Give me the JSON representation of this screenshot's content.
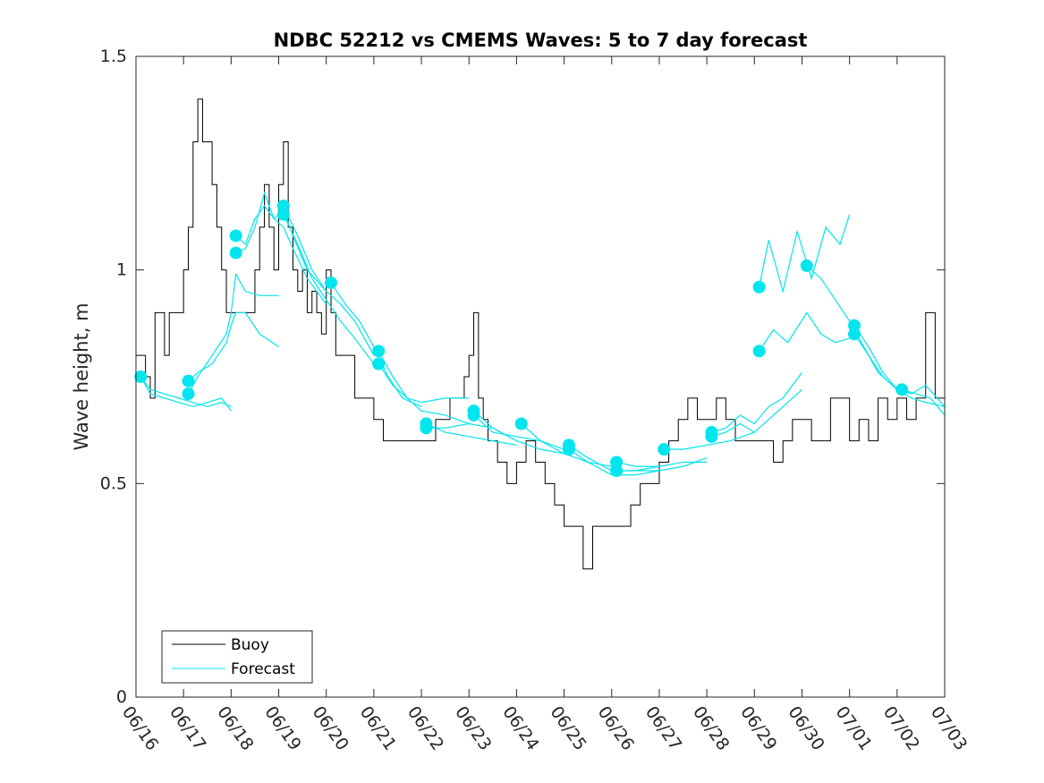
{
  "chart_data": {
    "type": "line",
    "title": "NDBC 52212 vs CMEMS Waves: 5 to 7 day forecast",
    "xlabel": "",
    "ylabel": "Wave height, m",
    "xlim": [
      "06/16",
      "07/03"
    ],
    "ylim": [
      0,
      1.5
    ],
    "x_tick_labels": [
      "06/16",
      "06/17",
      "06/18",
      "06/19",
      "06/20",
      "06/21",
      "06/22",
      "06/23",
      "06/24",
      "06/25",
      "06/26",
      "06/27",
      "06/28",
      "06/29",
      "06/30",
      "07/01",
      "07/02",
      "07/03"
    ],
    "y_ticks": [
      0,
      0.5,
      1,
      1.5
    ],
    "y_tick_labels": [
      "0",
      "0.5",
      "1",
      "1.5"
    ],
    "grid": false,
    "legend_position": "bottom-left",
    "colors": {
      "buoy": "#000000",
      "forecast": "#00e5ee"
    },
    "series": [
      {
        "name": "Buoy",
        "x_days": [
          0,
          0.1,
          0.2,
          0.3,
          0.4,
          0.5,
          0.6,
          0.7,
          0.8,
          0.9,
          1.0,
          1.1,
          1.2,
          1.3,
          1.4,
          1.5,
          1.6,
          1.7,
          1.8,
          1.9,
          2.0,
          2.1,
          2.3,
          2.5,
          2.6,
          2.7,
          2.8,
          2.9,
          3.0,
          3.1,
          3.2,
          3.3,
          3.4,
          3.5,
          3.6,
          3.7,
          3.8,
          3.9,
          4.0,
          4.1,
          4.2,
          4.3,
          4.4,
          4.6,
          4.8,
          5.0,
          5.2,
          5.4,
          5.6,
          5.8,
          6.0,
          6.3,
          6.6,
          6.9,
          7.0,
          7.1,
          7.2,
          7.3,
          7.4,
          7.6,
          7.8,
          8.0,
          8.2,
          8.4,
          8.6,
          8.8,
          9.0,
          9.2,
          9.4,
          9.6,
          9.8,
          10.0,
          10.2,
          10.4,
          10.6,
          10.8,
          11.0,
          11.2,
          11.4,
          11.6,
          11.8,
          12.0,
          12.2,
          12.4,
          12.6,
          12.8,
          13.0,
          13.2,
          13.4,
          13.6,
          13.8,
          14.0,
          14.2,
          14.4,
          14.6,
          14.8,
          15.0,
          15.2,
          15.4,
          15.6,
          15.8,
          16.0,
          16.2,
          16.4,
          16.6,
          16.8,
          17.0
        ],
        "values": [
          0.8,
          0.8,
          0.75,
          0.7,
          0.9,
          0.9,
          0.8,
          0.9,
          0.9,
          0.9,
          1.0,
          1.1,
          1.3,
          1.4,
          1.3,
          1.3,
          1.2,
          1.1,
          1.0,
          0.9,
          0.9,
          0.9,
          0.9,
          1.0,
          1.1,
          1.2,
          1.1,
          1.0,
          1.2,
          1.3,
          1.1,
          1.0,
          0.95,
          1.0,
          0.9,
          0.95,
          0.9,
          0.85,
          1.0,
          0.9,
          0.8,
          0.8,
          0.8,
          0.7,
          0.7,
          0.65,
          0.6,
          0.6,
          0.6,
          0.6,
          0.6,
          0.65,
          0.7,
          0.75,
          0.8,
          0.9,
          0.7,
          0.65,
          0.6,
          0.55,
          0.5,
          0.55,
          0.6,
          0.55,
          0.5,
          0.45,
          0.4,
          0.4,
          0.3,
          0.4,
          0.4,
          0.4,
          0.4,
          0.45,
          0.5,
          0.5,
          0.55,
          0.6,
          0.65,
          0.7,
          0.65,
          0.65,
          0.7,
          0.65,
          0.6,
          0.6,
          0.6,
          0.6,
          0.55,
          0.6,
          0.65,
          0.65,
          0.6,
          0.6,
          0.7,
          0.7,
          0.6,
          0.65,
          0.6,
          0.7,
          0.65,
          0.7,
          0.65,
          0.7,
          0.9,
          0.7,
          0.7
        ]
      },
      {
        "name": "Forecast",
        "runs": [
          {
            "x_days": [
              0.1,
              0.3,
              0.6,
              0.9,
              1.2,
              1.5,
              1.8,
              2.0
            ],
            "values": [
              0.75,
              0.72,
              0.71,
              0.7,
              0.69,
              0.68,
              0.69,
              0.68
            ]
          },
          {
            "x_days": [
              0.1,
              0.3,
              0.6,
              0.9,
              1.2,
              1.5,
              1.8,
              2.0
            ],
            "values": [
              0.75,
              0.71,
              0.7,
              0.69,
              0.68,
              0.69,
              0.7,
              0.67
            ]
          },
          {
            "x_days": [
              1.1,
              1.3,
              1.6,
              1.9,
              2.0,
              2.1,
              2.3,
              2.6,
              3.0
            ],
            "values": [
              0.71,
              0.75,
              0.8,
              0.85,
              0.9,
              0.99,
              0.95,
              0.94,
              0.94
            ]
          },
          {
            "x_days": [
              1.1,
              1.3,
              1.6,
              1.9,
              2.0,
              2.1,
              2.3,
              2.6,
              3.0
            ],
            "values": [
              0.74,
              0.76,
              0.78,
              0.83,
              0.87,
              0.9,
              0.9,
              0.85,
              0.82
            ]
          },
          {
            "x_days": [
              2.1,
              2.3,
              2.5,
              2.7,
              2.9,
              3.1,
              3.3,
              3.6,
              4.0
            ],
            "values": [
              1.04,
              1.05,
              1.1,
              1.18,
              1.12,
              1.1,
              1.05,
              0.98,
              0.92
            ]
          },
          {
            "x_days": [
              2.1,
              2.3,
              2.5,
              2.7,
              2.9,
              3.1,
              3.3,
              3.6,
              4.0
            ],
            "values": [
              1.08,
              1.06,
              1.12,
              1.15,
              1.12,
              1.14,
              1.08,
              1.0,
              0.95
            ]
          },
          {
            "x_days": [
              3.1,
              3.4,
              3.7,
              4.0,
              4.3,
              4.6,
              5.0
            ],
            "values": [
              1.15,
              1.08,
              1.0,
              0.95,
              0.92,
              0.88,
              0.8
            ]
          },
          {
            "x_days": [
              3.1,
              3.4,
              3.7,
              4.0,
              4.3,
              4.6,
              5.0
            ],
            "values": [
              1.13,
              1.06,
              0.98,
              0.93,
              0.88,
              0.84,
              0.78
            ]
          },
          {
            "x_days": [
              4.1,
              4.4,
              4.7,
              5.0,
              5.3,
              5.6,
              6.0
            ],
            "values": [
              0.97,
              0.92,
              0.88,
              0.82,
              0.75,
              0.7,
              0.68
            ]
          },
          {
            "x_days": [
              5.1,
              5.4,
              5.7,
              6.0,
              6.5,
              7.0
            ],
            "values": [
              0.81,
              0.75,
              0.7,
              0.67,
              0.66,
              0.64
            ]
          },
          {
            "x_days": [
              5.1,
              5.4,
              5.7,
              6.0,
              6.5,
              7.0
            ],
            "values": [
              0.78,
              0.73,
              0.7,
              0.69,
              0.7,
              0.7
            ]
          },
          {
            "x_days": [
              6.1,
              6.5,
              7.0,
              7.5,
              8.0
            ],
            "values": [
              0.64,
              0.62,
              0.61,
              0.6,
              0.59
            ]
          },
          {
            "x_days": [
              6.1,
              6.5,
              7.0,
              7.5,
              8.0
            ],
            "values": [
              0.63,
              0.63,
              0.64,
              0.63,
              0.6
            ]
          },
          {
            "x_days": [
              7.1,
              7.5,
              8.0,
              8.5,
              9.0
            ],
            "values": [
              0.67,
              0.63,
              0.6,
              0.58,
              0.57
            ]
          },
          {
            "x_days": [
              7.1,
              7.5,
              8.0,
              8.5,
              9.0
            ],
            "values": [
              0.66,
              0.62,
              0.61,
              0.6,
              0.58
            ]
          },
          {
            "x_days": [
              8.1,
              8.5,
              9.0,
              9.5,
              10.0
            ],
            "values": [
              0.64,
              0.6,
              0.57,
              0.55,
              0.54
            ]
          },
          {
            "x_days": [
              9.1,
              9.5,
              10.0,
              10.5,
              11.0
            ],
            "values": [
              0.59,
              0.56,
              0.53,
              0.53,
              0.54
            ]
          },
          {
            "x_days": [
              9.1,
              9.5,
              10.0,
              10.5,
              11.0
            ],
            "values": [
              0.58,
              0.55,
              0.52,
              0.52,
              0.53
            ]
          },
          {
            "x_days": [
              10.1,
              10.5,
              11.0,
              11.5,
              12.0
            ],
            "values": [
              0.55,
              0.54,
              0.54,
              0.55,
              0.55
            ]
          },
          {
            "x_days": [
              10.1,
              10.5,
              11.0,
              11.5,
              12.0
            ],
            "values": [
              0.53,
              0.53,
              0.53,
              0.54,
              0.56
            ]
          },
          {
            "x_days": [
              11.1,
              11.5,
              12.0,
              12.5,
              13.0
            ],
            "values": [
              0.58,
              0.58,
              0.59,
              0.6,
              0.62
            ]
          },
          {
            "x_days": [
              12.1,
              12.4,
              12.7,
              13.0,
              13.3,
              13.6,
              14.0
            ],
            "values": [
              0.62,
              0.63,
              0.66,
              0.64,
              0.68,
              0.7,
              0.76
            ]
          },
          {
            "x_days": [
              12.1,
              12.4,
              12.7,
              13.0,
              13.3,
              13.6,
              14.0
            ],
            "values": [
              0.61,
              0.62,
              0.64,
              0.62,
              0.65,
              0.68,
              0.72
            ]
          },
          {
            "x_days": [
              13.1,
              13.3,
              13.6,
              13.9,
              14.2,
              14.5,
              14.8,
              15.0
            ],
            "values": [
              0.96,
              1.07,
              0.95,
              1.09,
              0.98,
              1.1,
              1.06,
              1.13
            ]
          },
          {
            "x_days": [
              13.1,
              13.4,
              13.7,
              14.1,
              14.4,
              14.7,
              15.0
            ],
            "values": [
              0.81,
              0.86,
              0.83,
              0.9,
              0.85,
              0.83,
              0.84
            ]
          },
          {
            "x_days": [
              14.1,
              14.4,
              14.7,
              15.0,
              15.3,
              15.6,
              16.0
            ],
            "values": [
              1.01,
              0.98,
              0.93,
              0.88,
              0.82,
              0.76,
              0.72
            ]
          },
          {
            "x_days": [
              15.1,
              15.4,
              15.7,
              16.0,
              16.3,
              16.6,
              17.0
            ],
            "values": [
              0.87,
              0.82,
              0.76,
              0.72,
              0.7,
              0.69,
              0.68
            ]
          },
          {
            "x_days": [
              15.1,
              15.4,
              15.7,
              16.0,
              16.3,
              16.6,
              17.0
            ],
            "values": [
              0.85,
              0.8,
              0.75,
              0.72,
              0.71,
              0.73,
              0.68
            ]
          },
          {
            "x_days": [
              16.1,
              16.4,
              16.7,
              17.0
            ],
            "values": [
              0.72,
              0.71,
              0.7,
              0.66
            ]
          }
        ],
        "markers": [
          {
            "x_day": 0.1,
            "value": 0.75
          },
          {
            "x_day": 1.1,
            "value": 0.71
          },
          {
            "x_day": 1.1,
            "value": 0.74
          },
          {
            "x_day": 2.1,
            "value": 1.04
          },
          {
            "x_day": 2.1,
            "value": 1.08
          },
          {
            "x_day": 3.1,
            "value": 1.15
          },
          {
            "x_day": 3.1,
            "value": 1.13
          },
          {
            "x_day": 4.1,
            "value": 0.97
          },
          {
            "x_day": 5.1,
            "value": 0.81
          },
          {
            "x_day": 5.1,
            "value": 0.78
          },
          {
            "x_day": 6.1,
            "value": 0.64
          },
          {
            "x_day": 6.1,
            "value": 0.63
          },
          {
            "x_day": 7.1,
            "value": 0.67
          },
          {
            "x_day": 7.1,
            "value": 0.66
          },
          {
            "x_day": 8.1,
            "value": 0.64
          },
          {
            "x_day": 9.1,
            "value": 0.59
          },
          {
            "x_day": 9.1,
            "value": 0.58
          },
          {
            "x_day": 10.1,
            "value": 0.55
          },
          {
            "x_day": 10.1,
            "value": 0.53
          },
          {
            "x_day": 11.1,
            "value": 0.58
          },
          {
            "x_day": 12.1,
            "value": 0.62
          },
          {
            "x_day": 12.1,
            "value": 0.61
          },
          {
            "x_day": 13.1,
            "value": 0.96
          },
          {
            "x_day": 13.1,
            "value": 0.81
          },
          {
            "x_day": 14.1,
            "value": 1.01
          },
          {
            "x_day": 15.1,
            "value": 0.87
          },
          {
            "x_day": 15.1,
            "value": 0.85
          },
          {
            "x_day": 16.1,
            "value": 0.72
          }
        ]
      }
    ],
    "legend": [
      "Buoy",
      "Forecast"
    ]
  }
}
